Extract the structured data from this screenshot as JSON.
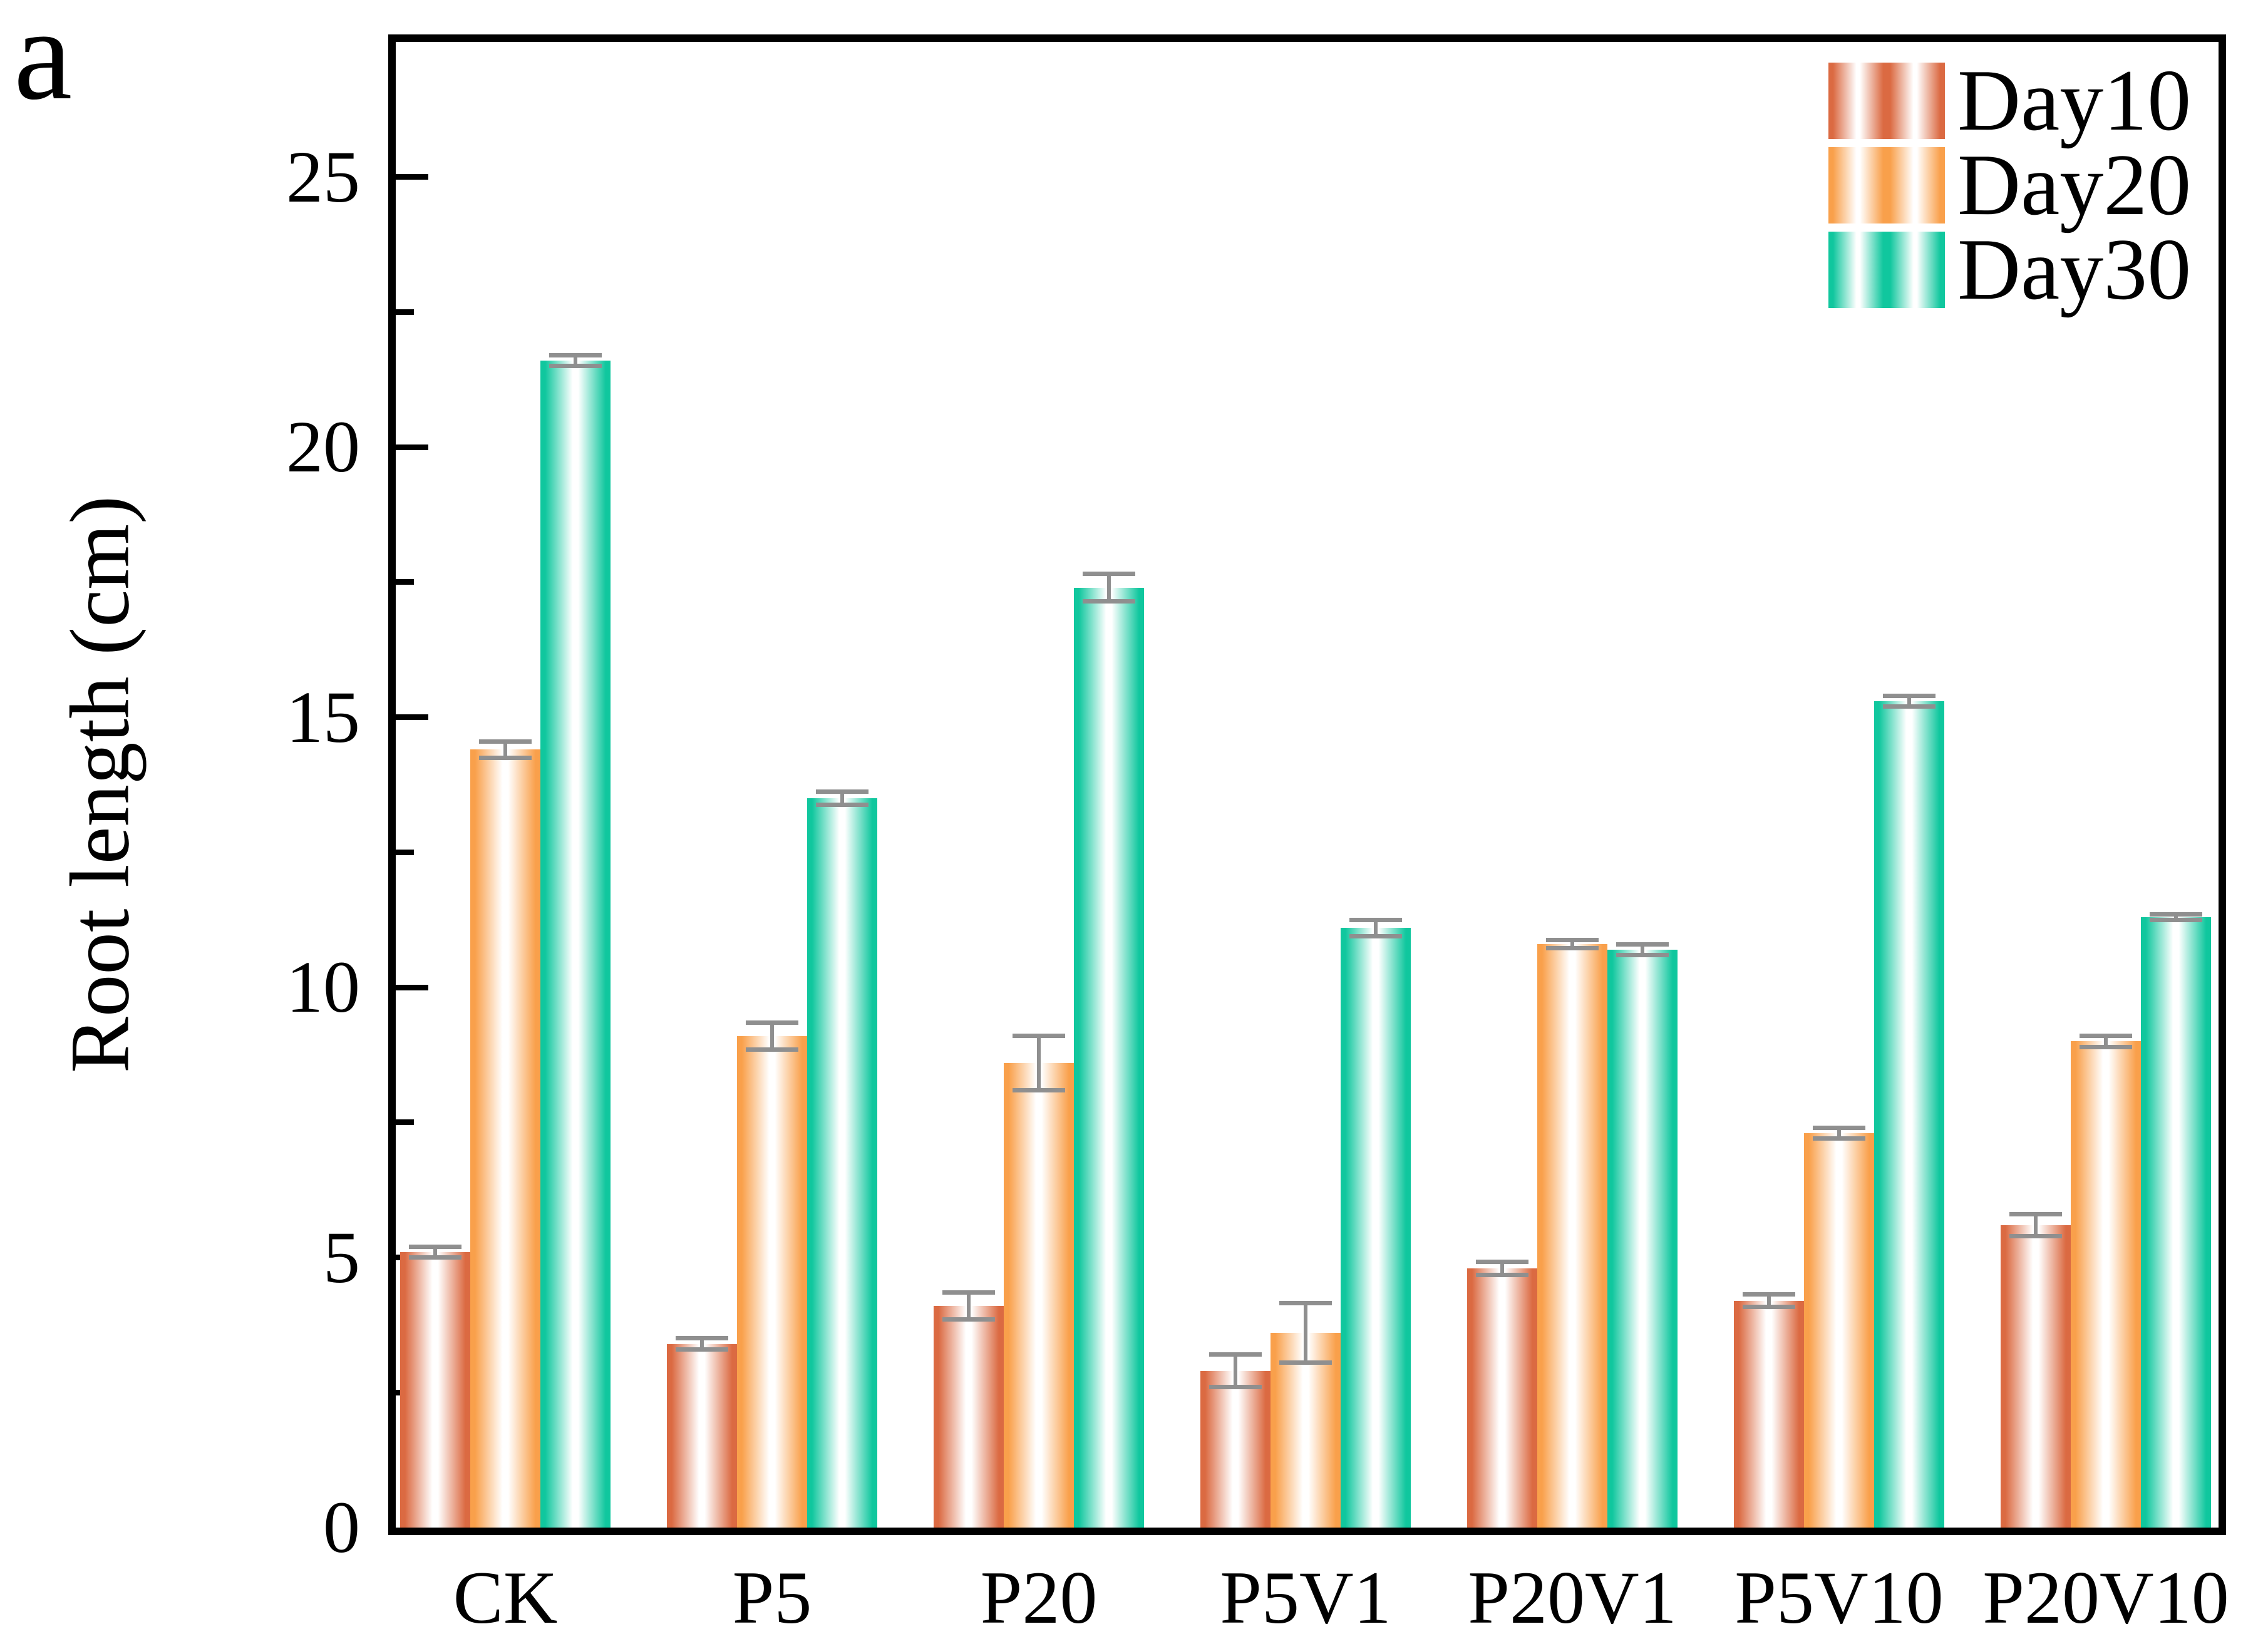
{
  "panel_label": "a",
  "y_axis": {
    "label": "Root length (cm)",
    "major_ticks": [
      0,
      5,
      10,
      15,
      20,
      25
    ],
    "minor_ticks": [
      2.5,
      7.5,
      12.5,
      17.5,
      22.5
    ],
    "range": [
      0,
      27.5
    ]
  },
  "legend": {
    "position": "top-right",
    "entries": [
      "Day10",
      "Day20",
      "Day30"
    ]
  },
  "colors": {
    "day10": "#DB6A42",
    "day20": "#F9A04B",
    "day30": "#10C79E",
    "error_bar": "#8F8F8F",
    "axis": "#000000"
  },
  "chart_data": {
    "type": "bar",
    "title": "",
    "xlabel": "",
    "ylabel": "Root length (cm)",
    "ylim": [
      0,
      27.5
    ],
    "grid": false,
    "legend_position": "top-right",
    "bar_style": "horizontal gradient: edge color to white center to edge color",
    "categories": [
      "CK",
      "P5",
      "P20",
      "P5V1",
      "P20V1",
      "P5V10",
      "P20V10"
    ],
    "series": [
      {
        "name": "Day10",
        "color": "#DB6A42",
        "values": [
          5.1,
          3.4,
          4.1,
          2.9,
          4.8,
          4.2,
          5.6
        ],
        "errors": [
          0.1,
          0.1,
          0.25,
          0.3,
          0.12,
          0.12,
          0.2
        ]
      },
      {
        "name": "Day20",
        "color": "#F9A04B",
        "values": [
          14.4,
          9.1,
          8.6,
          3.6,
          10.8,
          7.3,
          9.0
        ],
        "errors": [
          0.15,
          0.25,
          0.5,
          0.55,
          0.08,
          0.1,
          0.1
        ]
      },
      {
        "name": "Day30",
        "color": "#10C79E",
        "values": [
          21.6,
          13.5,
          17.4,
          11.1,
          10.7,
          15.3,
          11.3
        ],
        "errors": [
          0.1,
          0.12,
          0.25,
          0.15,
          0.1,
          0.1,
          0.05
        ]
      }
    ]
  }
}
